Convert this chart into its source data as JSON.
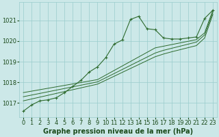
{
  "x": [
    0,
    1,
    2,
    3,
    4,
    5,
    6,
    7,
    8,
    9,
    10,
    11,
    12,
    13,
    14,
    15,
    16,
    17,
    18,
    19,
    20,
    21,
    22,
    23
  ],
  "y_main": [
    1016.6,
    1016.9,
    1017.1,
    1017.15,
    1017.25,
    1017.5,
    1017.8,
    1018.1,
    1018.5,
    1018.75,
    1019.2,
    1019.85,
    1020.05,
    1021.05,
    1021.2,
    1020.6,
    1020.55,
    1020.15,
    1020.1,
    1020.1,
    1020.15,
    1020.2,
    1021.1,
    1021.5
  ],
  "y_trend1": [
    1017.5,
    1017.57,
    1017.64,
    1017.71,
    1017.78,
    1017.85,
    1017.92,
    1017.99,
    1018.06,
    1018.13,
    1018.35,
    1018.57,
    1018.79,
    1019.01,
    1019.23,
    1019.45,
    1019.67,
    1019.75,
    1019.83,
    1019.91,
    1019.99,
    1020.07,
    1020.4,
    1021.5
  ],
  "y_trend2": [
    1017.3,
    1017.38,
    1017.46,
    1017.54,
    1017.62,
    1017.7,
    1017.78,
    1017.86,
    1017.94,
    1018.02,
    1018.22,
    1018.42,
    1018.62,
    1018.82,
    1019.02,
    1019.22,
    1019.42,
    1019.55,
    1019.65,
    1019.75,
    1019.85,
    1019.95,
    1020.3,
    1021.4
  ],
  "y_trend3": [
    1017.1,
    1017.19,
    1017.28,
    1017.37,
    1017.46,
    1017.55,
    1017.64,
    1017.73,
    1017.82,
    1017.91,
    1018.1,
    1018.29,
    1018.48,
    1018.67,
    1018.86,
    1019.05,
    1019.24,
    1019.37,
    1019.48,
    1019.58,
    1019.68,
    1019.78,
    1020.15,
    1021.3
  ],
  "line_color": "#2d6a2d",
  "bg_color": "#cce8e8",
  "grid_color": "#99cccc",
  "xlabel": "Graphe pression niveau de la mer (hPa)",
  "ylim": [
    1016.3,
    1021.9
  ],
  "yticks": [
    1017,
    1018,
    1019,
    1020,
    1021
  ],
  "xticks": [
    0,
    1,
    2,
    3,
    4,
    5,
    6,
    7,
    8,
    9,
    10,
    11,
    12,
    13,
    14,
    15,
    16,
    17,
    18,
    19,
    20,
    21,
    22,
    23
  ],
  "xlabel_fontsize": 7.0,
  "tick_fontsize": 6.0,
  "title_color": "#1a4a1a"
}
